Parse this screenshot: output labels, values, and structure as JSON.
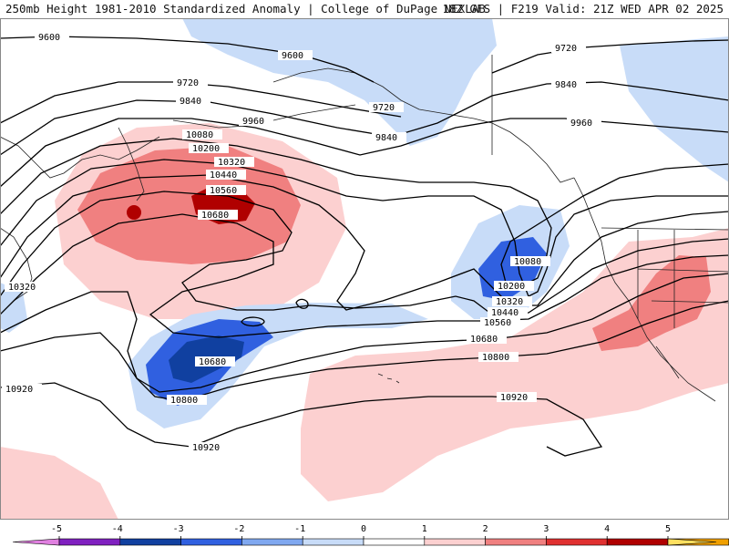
{
  "header": {
    "left_title": "250mb Height 1981-2010 Standardized Anomaly | College of DuPage NEXLAB",
    "right_title": "18Z GFS | F219 Valid: 21Z WED APR 02 2025"
  },
  "contour_labels": [
    "9600",
    "9720",
    "9840",
    "9960",
    "10080",
    "10200",
    "10320",
    "10440",
    "10560",
    "10680",
    "10800",
    "10920"
  ],
  "colorbar": {
    "ticks": [
      "-5",
      "-4",
      "-3",
      "-2",
      "-1",
      "0",
      "1",
      "2",
      "3",
      "4",
      "5"
    ],
    "colors": [
      "#e080e0",
      "#8020c0",
      "#1040a0",
      "#3060e0",
      "#80a8f0",
      "#c8dcf8",
      "#ffffff",
      "#fcd0d0",
      "#f08080",
      "#e03030",
      "#b00000",
      "#f0a000",
      "#ffe060"
    ]
  }
}
